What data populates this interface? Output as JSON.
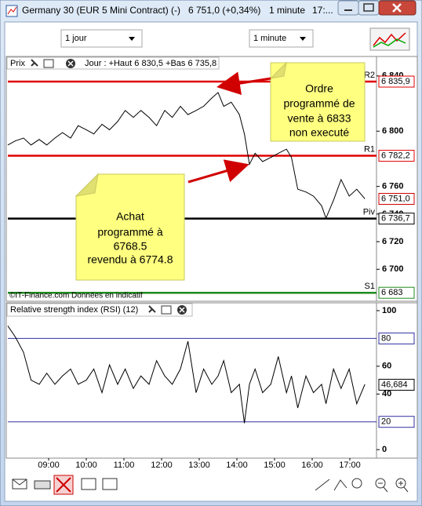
{
  "window": {
    "title": "Germany 30 (EUR 5 Mini Contract) (-)",
    "quote": "6 751,0 (+0,34%)",
    "interval": "1 minute",
    "time": "17:..."
  },
  "toolbar": {
    "period": "1 jour",
    "interval": "1 minute"
  },
  "chart_data": [
    {
      "type": "line",
      "title": "Prix",
      "subtitle": "Jour : +Haut 6 830,5 +Bas 6 735,8",
      "footer": "©IT-Finance.com  Données en indicatif",
      "x": [
        475,
        487,
        500,
        512,
        525,
        537,
        550,
        562,
        575,
        587,
        600,
        612,
        625,
        637,
        650,
        662,
        675,
        687,
        700,
        712,
        725,
        737,
        750,
        762,
        775,
        787,
        800,
        810,
        819,
        831,
        844,
        852,
        860,
        869,
        881,
        894,
        906,
        919,
        927,
        937,
        950,
        962,
        975,
        982,
        994,
        1006,
        1019,
        1031,
        1044
      ],
      "series": [
        {
          "color": "#000000",
          "values": [
            6790,
            6793,
            6795,
            6790,
            6794,
            6790,
            6795,
            6799,
            6795,
            6804,
            6801,
            6798,
            6805,
            6801,
            6807,
            6815,
            6810,
            6815,
            6810,
            6804,
            6815,
            6810,
            6818,
            6812,
            6815,
            6818,
            6824,
            6828,
            6818,
            6821,
            6812,
            6798,
            6776,
            6784,
            6778,
            6781,
            6784,
            6787,
            6781,
            6758,
            6756,
            6753,
            6746,
            6737,
            6750,
            6765,
            6753,
            6758,
            6751
          ]
        }
      ],
      "xlim": [
        475,
        1062.5
      ],
      "ylim": [
        6678,
        6845
      ],
      "yticks": [
        {
          "value": 6840,
          "label": "6 840"
        },
        {
          "value": 6800,
          "label": "6 800"
        },
        {
          "value": 6760,
          "label": "6 760"
        },
        {
          "value": 6740,
          "label": "6 740"
        },
        {
          "value": 6720,
          "label": "6 720"
        },
        {
          "value": 6700,
          "label": "6 700"
        }
      ],
      "levels": [
        {
          "name": "R2",
          "value": 6835.9,
          "label": "6 835,9",
          "color": "#e00000"
        },
        {
          "name": "R1",
          "value": 6782.2,
          "label": "6 782,2",
          "color": "#e00000"
        },
        {
          "name": "Piv",
          "value": 6736.7,
          "label": "6 736,7",
          "color": "#000000"
        },
        {
          "name": "S1",
          "value": 6683,
          "label": "6 683",
          "color": "#1f8a1f"
        }
      ],
      "current": {
        "value": 6751.0,
        "label": "6 751,0",
        "color": "#d00000"
      },
      "notes": [
        {
          "lines": [
            "Ordre",
            "programmé de",
            "vente à 6833",
            "non executé"
          ]
        },
        {
          "lines": [
            "Achat",
            "programmé à",
            "6768.5",
            "revendu à 6774.8"
          ]
        }
      ]
    },
    {
      "type": "line",
      "title": "Relative strength index (RSI) (12)",
      "x": [
        475,
        487,
        500,
        512,
        525,
        537,
        550,
        562,
        575,
        587,
        600,
        612,
        625,
        637,
        650,
        662,
        675,
        687,
        700,
        712,
        725,
        737,
        750,
        762,
        775,
        787,
        800,
        810,
        819,
        831,
        844,
        852,
        860,
        869,
        881,
        894,
        906,
        919,
        927,
        937,
        950,
        962,
        975,
        982,
        994,
        1006,
        1019,
        1031,
        1044
      ],
      "series": [
        {
          "color": "#000000",
          "values": [
            89,
            81,
            70,
            50,
            47,
            55,
            47,
            53,
            58,
            47,
            50,
            58,
            41,
            61,
            47,
            58,
            44,
            53,
            47,
            64,
            53,
            47,
            58,
            78,
            41,
            58,
            47,
            53,
            64,
            41,
            47,
            19,
            47,
            58,
            41,
            47,
            67,
            41,
            53,
            30,
            53,
            41,
            47,
            33,
            58,
            44,
            58,
            33,
            47
          ]
        }
      ],
      "xlim": [
        475,
        1062.5
      ],
      "ylim": [
        -5,
        104.5
      ],
      "yticks": [
        100,
        60,
        40,
        0
      ],
      "levels": [
        {
          "value": 80,
          "color": "#3030a0"
        },
        {
          "value": 20,
          "color": "#3030a0"
        }
      ],
      "current": {
        "value": 46.684,
        "label": "46,684",
        "color": "#000000"
      },
      "xticks": [
        {
          "value": 540,
          "label": "09:00"
        },
        {
          "value": 600,
          "label": "10:00"
        },
        {
          "value": 660,
          "label": "11:00"
        },
        {
          "value": 720,
          "label": "12:00"
        },
        {
          "value": 780,
          "label": "13:00"
        },
        {
          "value": 840,
          "label": "14:00"
        },
        {
          "value": 900,
          "label": "15:00"
        },
        {
          "value": 960,
          "label": "16:00"
        },
        {
          "value": 1020,
          "label": "17:00"
        }
      ]
    }
  ]
}
